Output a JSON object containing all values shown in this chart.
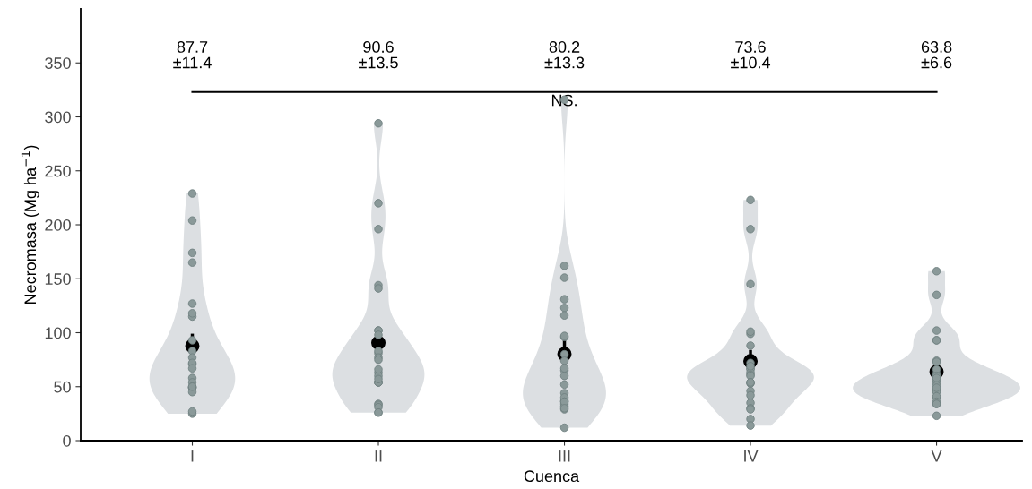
{
  "chart_data": {
    "type": "scatter",
    "xlabel": "Cuenca",
    "ylabel": "Necromasa (Mg ha$^{−1}$)",
    "categories": [
      "I",
      "II",
      "III",
      "IV",
      "V"
    ],
    "ylim": [
      0,
      400
    ],
    "yticks": [
      0,
      50,
      100,
      150,
      200,
      250,
      300,
      350
    ],
    "grid": false,
    "legend": false,
    "annotations": [
      "87.7\n±11.4",
      "90.6\n±13.5",
      "80.2\n±13.3",
      "73.6\n±10.4",
      "63.8\n±6.6"
    ],
    "ref_lines": [
      {
        "axis": "y",
        "value": 323,
        "label": "NS.",
        "color": "#000000"
      }
    ],
    "series": [
      {
        "type": "scatter",
        "color": "#8a9999",
        "marker": "circle",
        "x": [
          "I",
          "I",
          "I",
          "I",
          "I",
          "I",
          "I",
          "I",
          "I",
          "I",
          "I",
          "I",
          "I",
          "I",
          "I",
          "I",
          "I",
          "I",
          "I",
          "I",
          "I",
          "I",
          "I",
          "II",
          "II",
          "II",
          "II",
          "II",
          "II",
          "II",
          "II",
          "II",
          "II",
          "II",
          "II",
          "II",
          "II",
          "II",
          "II",
          "II",
          "II",
          "II",
          "II",
          "II",
          "II",
          "II",
          "II",
          "III",
          "III",
          "III",
          "III",
          "III",
          "III",
          "III",
          "III",
          "III",
          "III",
          "III",
          "III",
          "III",
          "III",
          "III",
          "III",
          "III",
          "III",
          "III",
          "III",
          "III",
          "III",
          "III",
          "III",
          "IV",
          "IV",
          "IV",
          "IV",
          "IV",
          "IV",
          "IV",
          "IV",
          "IV",
          "IV",
          "IV",
          "IV",
          "IV",
          "IV",
          "IV",
          "IV",
          "IV",
          "IV",
          "IV",
          "IV",
          "IV",
          "IV",
          "IV",
          "V",
          "V",
          "V",
          "V",
          "V",
          "V",
          "V",
          "V",
          "V",
          "V",
          "V",
          "V",
          "V",
          "V",
          "V",
          "V",
          "V",
          "V",
          "V",
          "V",
          "V",
          "V",
          "V",
          "V"
        ],
        "values": [
          229,
          204,
          174,
          165,
          127,
          115,
          118,
          93,
          83,
          71,
          77,
          72,
          67,
          58,
          54,
          50,
          49,
          49,
          49,
          45,
          50,
          25,
          27,
          294,
          220,
          196,
          144,
          141,
          102,
          102,
          98,
          81,
          83,
          77,
          75,
          63,
          54,
          54,
          54,
          60,
          66,
          57,
          34,
          33,
          31,
          26,
          26,
          316,
          162,
          151,
          131,
          123,
          116,
          96,
          97,
          80,
          74,
          65,
          67,
          60,
          52,
          44,
          37,
          40,
          36,
          29,
          34,
          32,
          36,
          30,
          12,
          223,
          196,
          145,
          99,
          101,
          88,
          67,
          72,
          66,
          63,
          61,
          69,
          60,
          54,
          53,
          54,
          46,
          42,
          35,
          30,
          29,
          20,
          14,
          157,
          135,
          102,
          93,
          93,
          74,
          73,
          62,
          66,
          60,
          56,
          54,
          58,
          51,
          46,
          47,
          45,
          49,
          40,
          41,
          36,
          34,
          34,
          23
        ]
      },
      {
        "type": "scatter",
        "color": "#000000",
        "marker": "circle",
        "x": [
          "I",
          "II",
          "III",
          "IV",
          "V"
        ],
        "values": [
          87.7,
          90.6,
          80.2,
          73.6,
          63.8
        ],
        "errors": [
          11.4,
          13.5,
          13.3,
          10.4,
          6.6
        ]
      }
    ]
  }
}
